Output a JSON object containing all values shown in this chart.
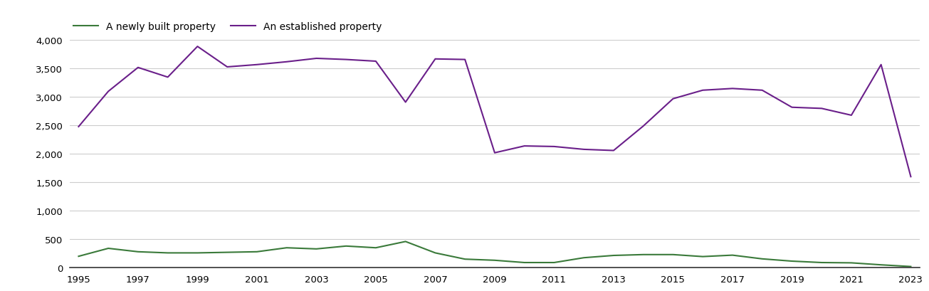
{
  "years": [
    1995,
    1996,
    1997,
    1998,
    1999,
    2000,
    2001,
    2002,
    2003,
    2004,
    2005,
    2006,
    2007,
    2008,
    2009,
    2010,
    2011,
    2012,
    2013,
    2014,
    2015,
    2016,
    2017,
    2018,
    2019,
    2020,
    2021,
    2022,
    2023
  ],
  "new_homes": [
    200,
    340,
    280,
    260,
    260,
    270,
    280,
    350,
    330,
    380,
    350,
    460,
    260,
    150,
    130,
    90,
    90,
    175,
    215,
    230,
    230,
    195,
    220,
    155,
    115,
    90,
    85,
    50,
    20
  ],
  "established_homes": [
    2480,
    3100,
    3520,
    3350,
    3890,
    3530,
    3570,
    3620,
    3680,
    3660,
    3630,
    2910,
    3670,
    3660,
    2020,
    2140,
    2130,
    2080,
    2060,
    2490,
    2970,
    3120,
    3150,
    3120,
    2820,
    2800,
    2680,
    3570,
    1600
  ],
  "new_color": "#3a7a3a",
  "established_color": "#6a1f8a",
  "legend_new": "A newly built property",
  "legend_established": "An established property",
  "ylim": [
    0,
    4000
  ],
  "yticks": [
    0,
    500,
    1000,
    1500,
    2000,
    2500,
    3000,
    3500,
    4000
  ],
  "xticks": [
    1995,
    1997,
    1999,
    2001,
    2003,
    2005,
    2007,
    2009,
    2011,
    2013,
    2015,
    2017,
    2019,
    2021,
    2023
  ],
  "background_color": "#ffffff",
  "grid_color": "#cccccc"
}
